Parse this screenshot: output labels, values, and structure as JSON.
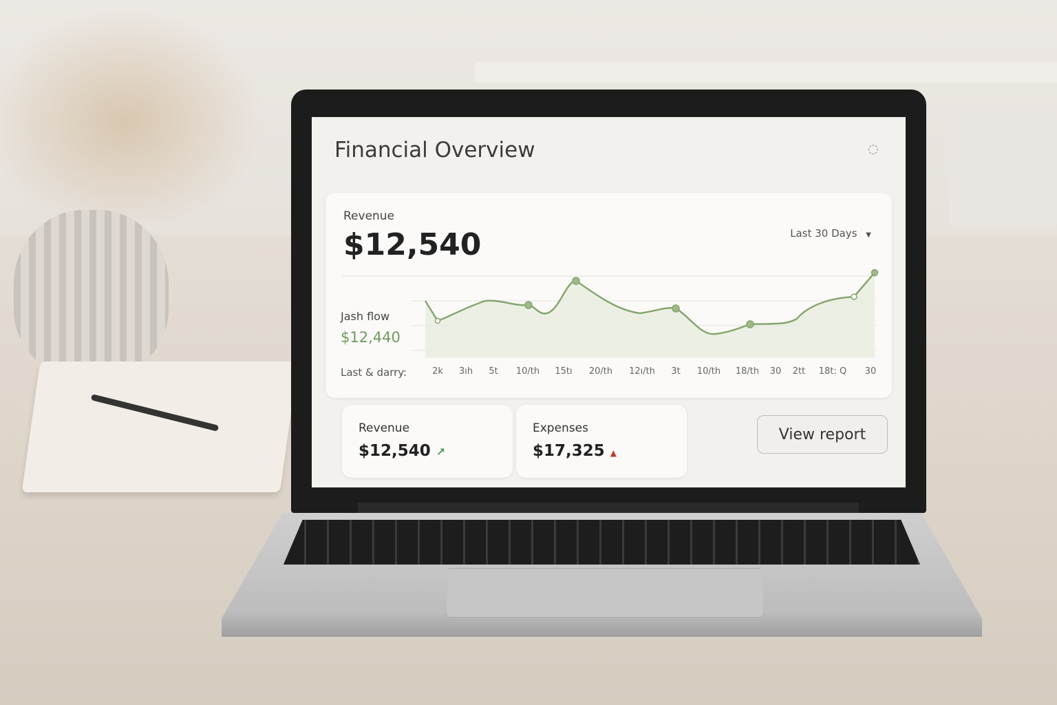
{
  "header": {
    "title": "Financial Overview",
    "loading_icon": "spinner-icon"
  },
  "revenue_panel": {
    "label": "Revenue",
    "value": "$12,540",
    "range": "Last 30 Days",
    "cash_flow_label": "Jash flow",
    "cash_flow_value": "$12,440",
    "axis_label": "Last & darry:",
    "x_ticks": [
      "2k",
      "3ıh",
      "5t",
      "10/th",
      "15tı",
      "20/th",
      "12ı/th",
      "3t",
      "10/th",
      "18/th",
      "30",
      "2tt",
      "18t: Q",
      "30"
    ],
    "line_color": "#86a66f"
  },
  "cards": [
    {
      "label": "Revenue",
      "value": "$12,540",
      "trend": "up",
      "trend_color": "#4f9a5a"
    },
    {
      "label": "Expenses",
      "value": "$17,325",
      "trend": "up",
      "trend_color": "#c0392b"
    }
  ],
  "actions": {
    "view_report": "View report"
  }
}
